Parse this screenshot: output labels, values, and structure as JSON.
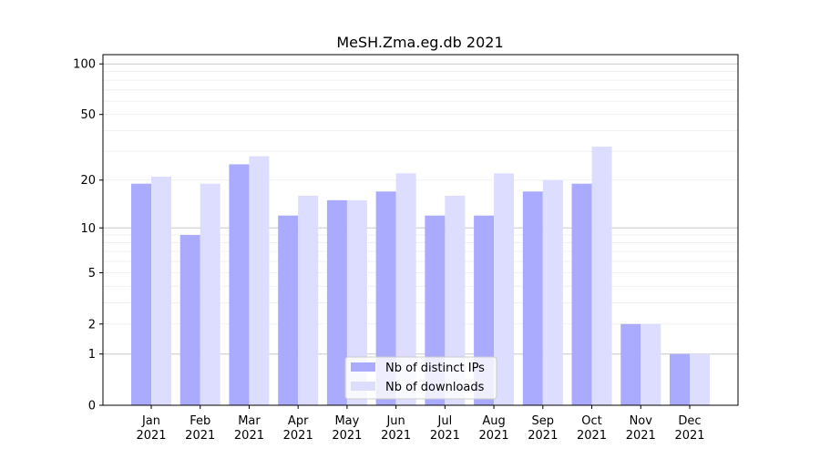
{
  "chart_data": {
    "type": "bar",
    "title": "MeSH.Zma.eg.db 2021",
    "xlabel": "",
    "ylabel": "",
    "y_scale": "log10(y+1)",
    "yticks": [
      0,
      1,
      2,
      5,
      10,
      20,
      50,
      100
    ],
    "ylim": [
      0,
      120
    ],
    "grid": true,
    "legend_placement": "bottom-center",
    "categories": [
      [
        "Jan",
        "2021"
      ],
      [
        "Feb",
        "2021"
      ],
      [
        "Mar",
        "2021"
      ],
      [
        "Apr",
        "2021"
      ],
      [
        "May",
        "2021"
      ],
      [
        "Jun",
        "2021"
      ],
      [
        "Jul",
        "2021"
      ],
      [
        "Aug",
        "2021"
      ],
      [
        "Sep",
        "2021"
      ],
      [
        "Oct",
        "2021"
      ],
      [
        "Nov",
        "2021"
      ],
      [
        "Dec",
        "2021"
      ]
    ],
    "series": [
      {
        "name": "Nb of distinct IPs",
        "color": "#aaaaff",
        "values": [
          19,
          9,
          25,
          12,
          15,
          17,
          12,
          12,
          17,
          19,
          2,
          1
        ]
      },
      {
        "name": "Nb of downloads",
        "color": "#ddddff",
        "values": [
          21,
          19,
          28,
          16,
          15,
          22,
          16,
          22,
          20,
          32,
          2,
          1
        ]
      }
    ]
  }
}
